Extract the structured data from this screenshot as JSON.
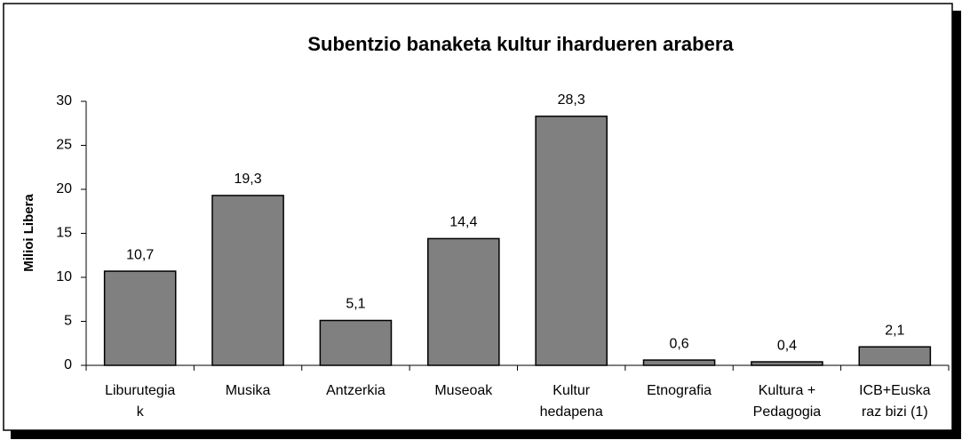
{
  "chart_data": {
    "type": "bar",
    "title": "Subentzio banaketa kultur ihardueren arabera",
    "y_label": "Milioi Libera",
    "categories": [
      [
        "Liburutegia",
        "k"
      ],
      [
        "Musika"
      ],
      [
        "Antzerkia"
      ],
      [
        "Museoak"
      ],
      [
        "Kultur",
        "hedapena"
      ],
      [
        "Etnografia"
      ],
      [
        "Kultura +",
        "Pedagogia"
      ],
      [
        "ICB+Euska",
        "raz bizi (1)"
      ]
    ],
    "values": [
      10.7,
      19.3,
      5.1,
      14.4,
      28.3,
      0.6,
      0.4,
      2.1
    ],
    "value_labels": [
      "10,7",
      "19,3",
      "5,1",
      "14,4",
      "28,3",
      "0,6",
      "0,4",
      "2,1"
    ],
    "color": "#808080",
    "ylim": [
      0,
      30
    ],
    "yticks": [
      0,
      5,
      10,
      15,
      20,
      25,
      30
    ],
    "grid": false
  }
}
